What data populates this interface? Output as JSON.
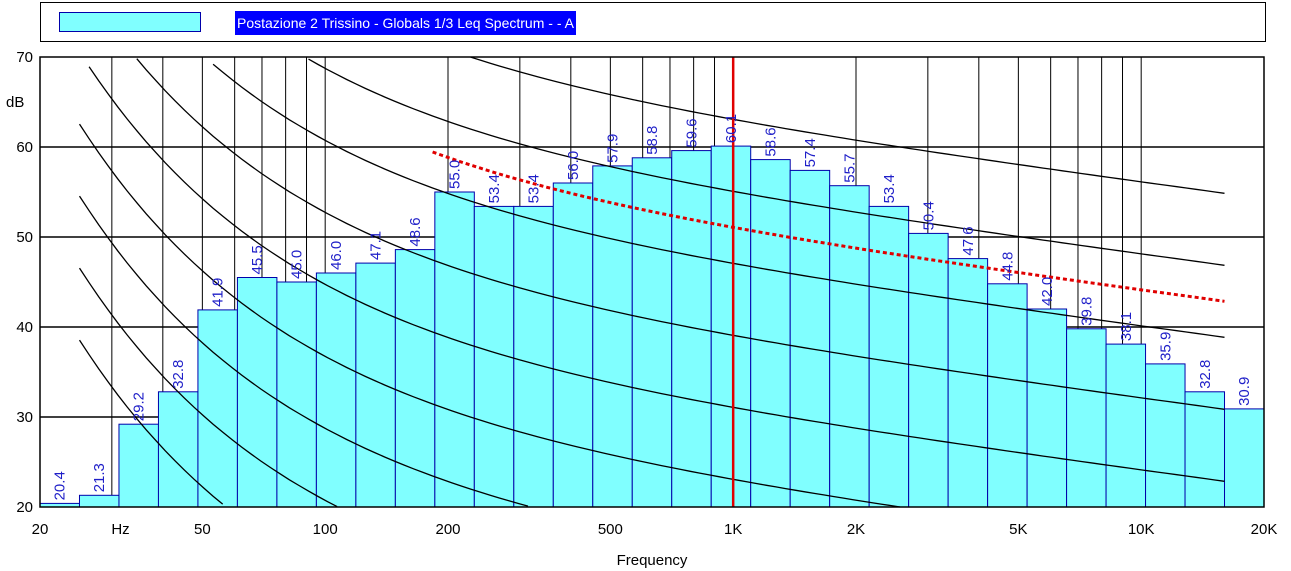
{
  "chart_data": {
    "type": "bar",
    "title": "Postazione 2 Trissino - Globals 1/3 Leq Spectrum -  - A",
    "xlabel": "Frequency",
    "ylabel": "dB",
    "x_scale": "log",
    "xlim": [
      20,
      20000
    ],
    "ylim": [
      20,
      70
    ],
    "grid": true,
    "x_tick_labels": [
      "20",
      "Hz",
      "50",
      "100",
      "200",
      "500",
      "1K",
      "2K",
      "5K",
      "10K",
      "20K"
    ],
    "y_tick_labels": [
      "20",
      "30",
      "40",
      "50",
      "60",
      "70"
    ],
    "categories": [
      "20",
      "25",
      "31.5",
      "40",
      "50",
      "63",
      "80",
      "100",
      "125",
      "160",
      "200",
      "250",
      "315",
      "400",
      "500",
      "630",
      "800",
      "1000",
      "1250",
      "1600",
      "2000",
      "2500",
      "3150",
      "4000",
      "5000",
      "6300",
      "8000",
      "10000",
      "12500",
      "16000",
      "20000"
    ],
    "values": [
      20.4,
      21.3,
      29.2,
      32.8,
      41.9,
      45.5,
      45.0,
      46.0,
      47.1,
      48.6,
      55.0,
      53.4,
      53.4,
      56.0,
      57.9,
      58.8,
      59.6,
      60.1,
      58.6,
      57.4,
      55.7,
      53.4,
      50.4,
      47.6,
      44.8,
      42.0,
      39.8,
      38.1,
      35.9,
      32.8,
      30.9
    ],
    "data_labels": [
      "20.4",
      "21.3",
      "29.2",
      "32.8",
      "41.9",
      "45.5",
      "45.0",
      "46.0",
      "47.1",
      "48.6",
      "55.0",
      "53.4",
      "53.4",
      "56.0",
      "57.9",
      "58.8",
      "59.6",
      "60.1",
      "58.6",
      "57.4",
      "55.7",
      "53.4",
      "50.4",
      "47.6",
      "44.8",
      "42.0",
      "39.8",
      "38.1",
      "35.9",
      "32.8",
      "30.9"
    ],
    "marker_frequency": 1000,
    "colors": {
      "bar": "#80ffff",
      "bar_edge": "#0000aa",
      "label": "#1f1fc8",
      "marker": "#e00000",
      "curve": "#000000",
      "dotted_curve": "#e00000"
    }
  }
}
